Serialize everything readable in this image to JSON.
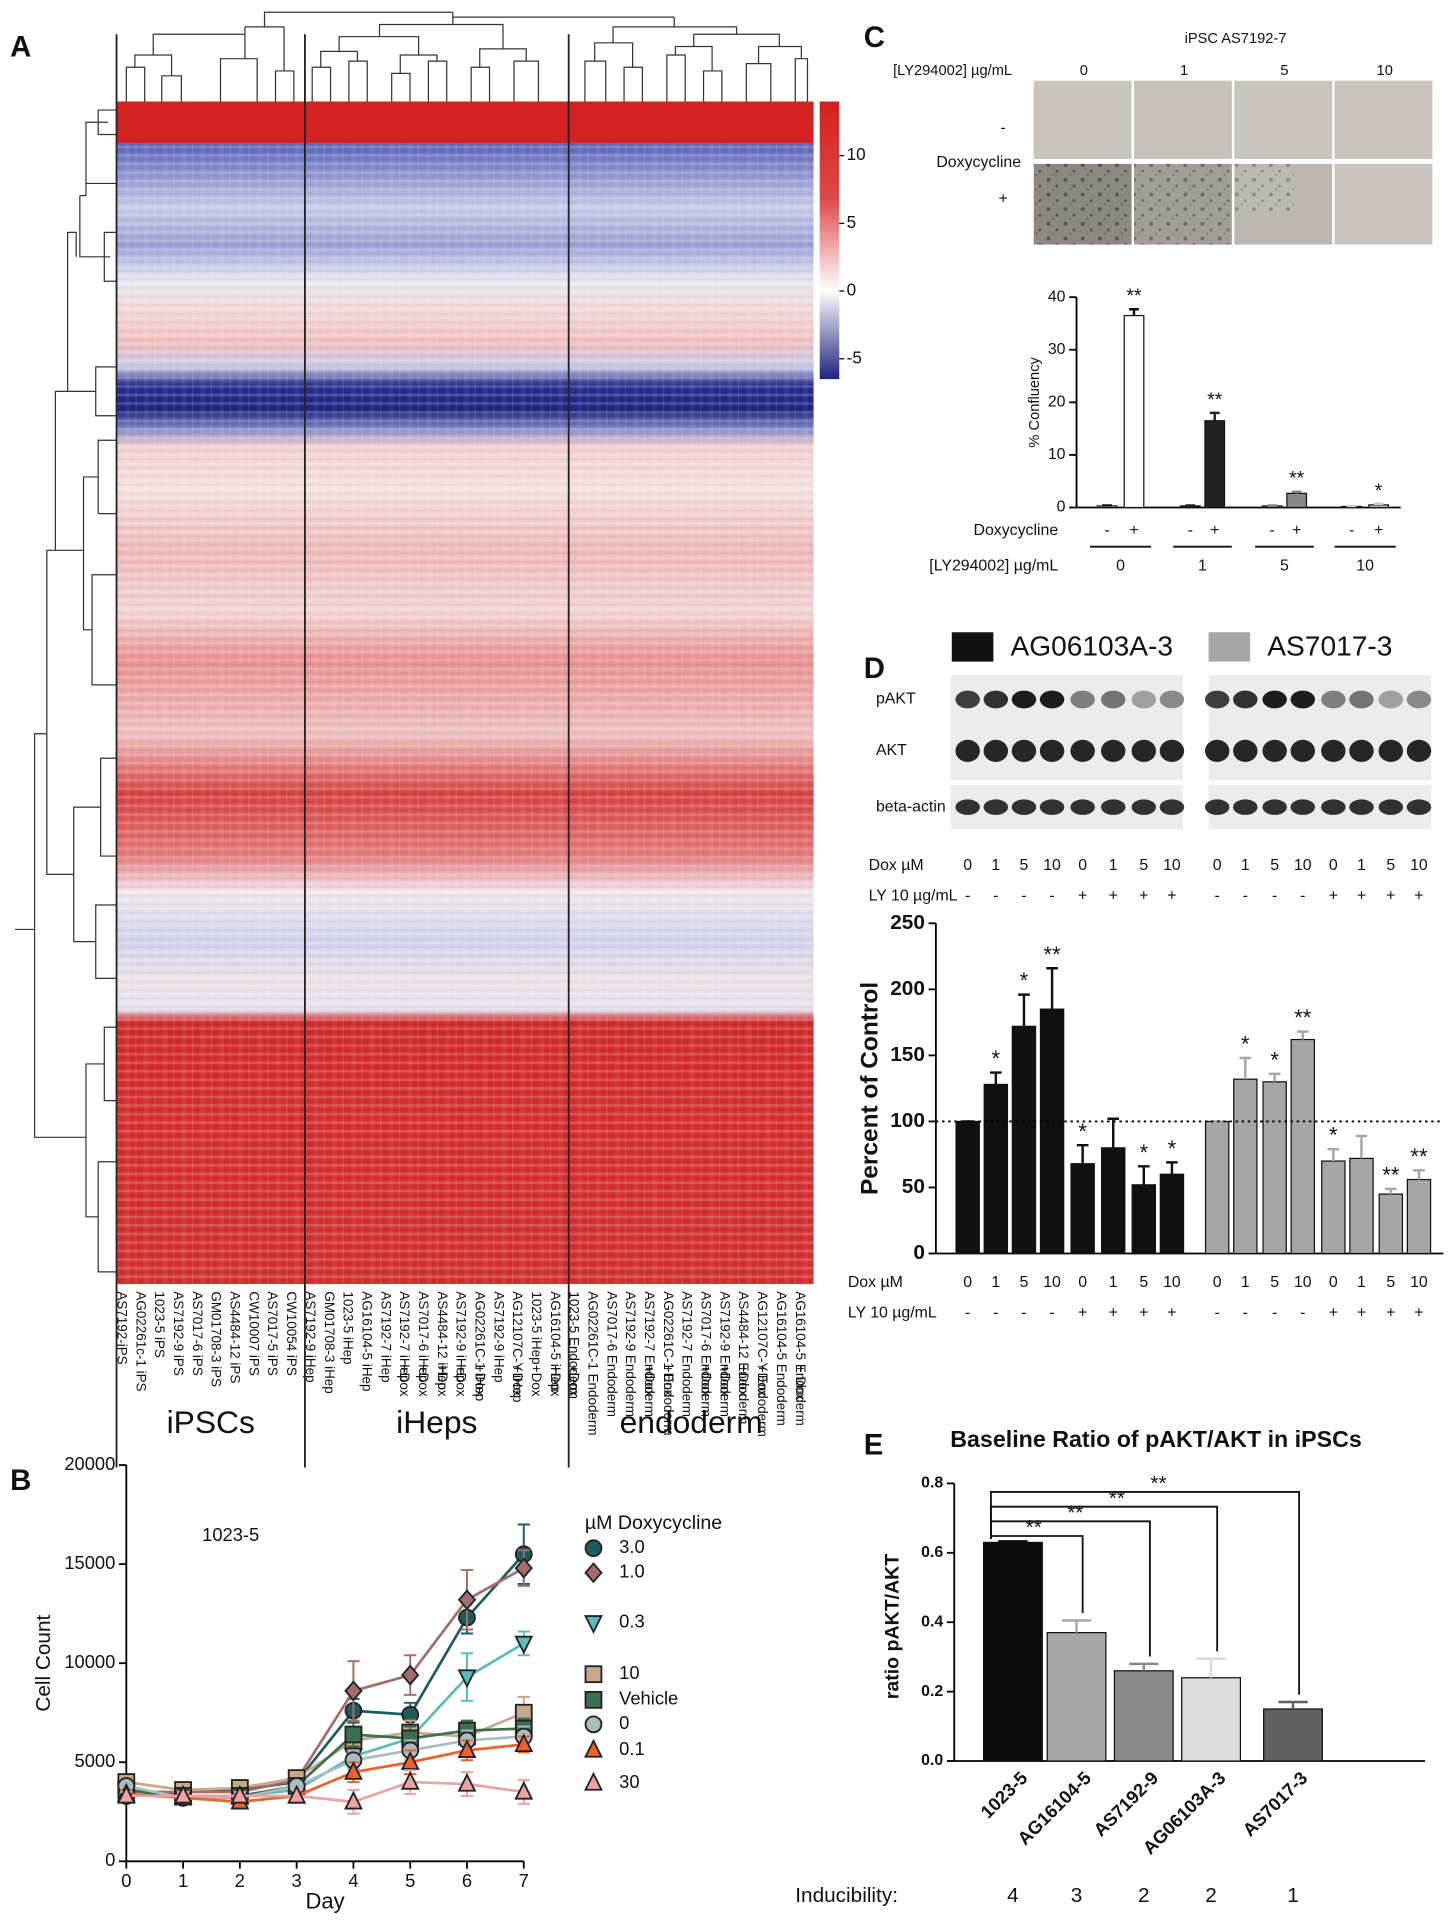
{
  "chart_data": [
    {
      "type": "heatmap",
      "label": "A",
      "columns": [
        {
          "label": "AS7192-iPS"
        },
        {
          "label": "AG02261c-1 iPS"
        },
        {
          "label": "1023-5 iPS"
        },
        {
          "label": "AS7192-9 iPS"
        },
        {
          "label": "AS7017-6 iPS"
        },
        {
          "label": "GM01708-3 iPS"
        },
        {
          "label": "AS4484-12 iPS"
        },
        {
          "label": "CW10007 iPS"
        },
        {
          "label": "AS7017-5 iPS"
        },
        {
          "label": "CW10054 iPS"
        },
        {
          "label": "AS7192-9 iHep"
        },
        {
          "label": "GM01708-3 iHep"
        },
        {
          "label": "1023-5 iHep"
        },
        {
          "label": "AG16104-5 iHep"
        },
        {
          "label": "AS7192-7 iHep"
        },
        {
          "label": "AS7192-7 iHep",
          "dox": "+Dox"
        },
        {
          "label": "AS7017-6 iHep",
          "dox": "+Dox"
        },
        {
          "label": "AS4484-12 iHep",
          "dox": "+Dox"
        },
        {
          "label": "AS7192-9 iHep",
          "dox": "+Dox"
        },
        {
          "label": "AG02261C-1 iHep",
          "dox": "+Dox"
        },
        {
          "label": "AS7192-9 iHep"
        },
        {
          "label": "AG12107C-Y iHep",
          "dox": "+Dox"
        },
        {
          "label": "1023-5 iHep",
          "dox": "+Dox"
        },
        {
          "label": "AG16104-5 iHep",
          "dox": "+Dox"
        },
        {
          "label": "1023-5 Endoderm",
          "dox": "+Dox"
        },
        {
          "label": "AG02261C-1 Endoderm"
        },
        {
          "label": "AS7017-6 Endoderm"
        },
        {
          "label": "AS7192-9 Endoderm"
        },
        {
          "label": "AS7192-7 Endoderm",
          "dox": "+Dox"
        },
        {
          "label": "AG02261C-1 Endoderm",
          "dox": "+Dox"
        },
        {
          "label": "AS7192-7 Endoderm"
        },
        {
          "label": "AS7017-6 Endoderm",
          "dox": "+Dox"
        },
        {
          "label": "AS7192-9 Endoderm",
          "dox": "+Dox"
        },
        {
          "label": "AS4484-12 Endoderm",
          "dox": "+Dox"
        },
        {
          "label": "AG12107C-Y Endoderm",
          "dox": "+Dox"
        },
        {
          "label": "AG16104-5 Endoderm"
        },
        {
          "label": "AG16104-5 Endoderm",
          "dox": "+ Dox"
        }
      ],
      "groups": [
        {
          "name": "iPSCs",
          "columns": 10
        },
        {
          "name": "iHeps",
          "columns": 14
        },
        {
          "name": "endoderm",
          "columns": 13
        }
      ],
      "clim": [
        -6.5,
        14
      ],
      "cticks": [
        10,
        5,
        0,
        -5
      ]
    },
    {
      "type": "line",
      "label": "B",
      "annotation": "1023-5",
      "legend_title": "µM Doxycycline",
      "xlabel": "Day",
      "ylabel": "Cell Count",
      "x": [
        0,
        1,
        2,
        3,
        4,
        5,
        6,
        7
      ],
      "xlim": [
        0,
        7
      ],
      "xticks": [
        0,
        1,
        2,
        3,
        4,
        5,
        6,
        7
      ],
      "ylim": [
        0,
        20000
      ],
      "yticks": [
        0,
        5000,
        10000,
        15000,
        20000
      ],
      "series": [
        {
          "name": "3.0",
          "color": "#1f5b5b",
          "marker": "circle",
          "values": [
            3300,
            3500,
            3600,
            4000,
            7600,
            7400,
            12300,
            15500
          ],
          "errors": [
            300,
            200,
            200,
            300,
            600,
            600,
            800,
            1500
          ]
        },
        {
          "name": "1.0",
          "color": "#a36c6c",
          "marker": "diamond",
          "values": [
            3500,
            3500,
            3500,
            4100,
            8600,
            9400,
            13200,
            14800
          ],
          "errors": [
            300,
            200,
            200,
            300,
            1500,
            1000,
            1500,
            900
          ]
        },
        {
          "name": "0.3",
          "color": "#5bbcbc",
          "marker": "triangle-down",
          "values": [
            3600,
            3300,
            3300,
            3600,
            5300,
            6200,
            9300,
            11000
          ],
          "errors": [
            200,
            200,
            200,
            300,
            600,
            600,
            1200,
            600
          ]
        },
        {
          "name": "10",
          "color": "#c8a88a",
          "marker": "square",
          "values": [
            4000,
            3600,
            3700,
            4200,
            6100,
            6500,
            6300,
            7500
          ],
          "errors": [
            300,
            200,
            200,
            300,
            600,
            600,
            500,
            800
          ]
        },
        {
          "name": "Vehicle",
          "color": "#3d6e50",
          "marker": "square",
          "values": [
            3600,
            3300,
            3300,
            3800,
            6400,
            6200,
            6600,
            6700
          ],
          "errors": [
            300,
            200,
            200,
            300,
            600,
            600,
            500,
            500
          ]
        },
        {
          "name": "0",
          "color": "#a9bcc0",
          "marker": "circle",
          "values": [
            3800,
            3200,
            3200,
            3800,
            5100,
            5600,
            6100,
            6300
          ],
          "errors": [
            300,
            200,
            200,
            300,
            500,
            500,
            500,
            500
          ]
        },
        {
          "name": "0.1",
          "color": "#f0602e",
          "marker": "triangle",
          "values": [
            3400,
            3200,
            3000,
            3300,
            4500,
            5000,
            5600,
            5900
          ],
          "errors": [
            200,
            200,
            300,
            300,
            500,
            600,
            500,
            400
          ]
        },
        {
          "name": "30",
          "color": "#eba2a2",
          "marker": "triangle",
          "values": [
            3300,
            3300,
            3300,
            3300,
            3000,
            4000,
            3900,
            3500
          ],
          "errors": [
            200,
            200,
            200,
            300,
            600,
            600,
            600,
            600
          ]
        }
      ]
    },
    {
      "type": "bar",
      "label": "C",
      "images": {
        "title": "iPSC AS7192-7",
        "column_label": "[LY294002] µg/mL",
        "columns": [
          "0",
          "1",
          "5",
          "10"
        ],
        "row_label": "Doxycycline",
        "rows": [
          "-",
          "+"
        ]
      },
      "ylabel": "% Confluency",
      "ylim": [
        0,
        40
      ],
      "yticks": [
        0,
        10,
        20,
        30,
        40
      ],
      "dox_label": "Doxycycline",
      "dox": [
        "-",
        "+",
        "-",
        "+",
        "-",
        "+",
        "-",
        "+"
      ],
      "group_label": "[LY294002] µg/mL",
      "groups": [
        "0",
        "1",
        "5",
        "10"
      ],
      "values": [
        0.3,
        36.5,
        0.3,
        16.5,
        0.3,
        2.7,
        0.2,
        0.5
      ],
      "errors": [
        0.1,
        1.2,
        0.1,
        1.5,
        0.1,
        0.3,
        0.1,
        0.2
      ],
      "colors": [
        "#ffffff",
        "#ffffff",
        "#222222",
        "#222222",
        "#888888",
        "#888888",
        "#cccccc",
        "#cccccc"
      ],
      "annotations": [
        null,
        "**",
        null,
        "**",
        null,
        "**",
        null,
        "*"
      ]
    },
    {
      "type": "bar",
      "label": "D",
      "blot_rows": [
        "pAKT",
        "AKT",
        "beta-actin"
      ],
      "dox_label": "Dox µM",
      "dox": [
        "0",
        "1",
        "5",
        "10",
        "0",
        "1",
        "5",
        "10"
      ],
      "ly_label": "LY 10 µg/mL",
      "ly": [
        "-",
        "-",
        "-",
        "-",
        "+",
        "+",
        "+",
        "+"
      ],
      "ylabel": "Percent of Control",
      "ylim": [
        0,
        250
      ],
      "yticks": [
        0,
        50,
        100,
        150,
        200,
        250
      ],
      "reference_line": 100,
      "series": [
        {
          "name": "AG06103A-3",
          "color": "#111111",
          "values": [
            100,
            128,
            172,
            185,
            68,
            80,
            52,
            60
          ],
          "errors": [
            0,
            9,
            24,
            31,
            14,
            22,
            14,
            9
          ],
          "annotations": [
            null,
            "*",
            "*",
            "**",
            "*",
            null,
            "*",
            "*"
          ]
        },
        {
          "name": "AS7017-3",
          "color": "#a6a6a6",
          "values": [
            100,
            132,
            130,
            162,
            70,
            72,
            45,
            56
          ],
          "errors": [
            0,
            16,
            6,
            6,
            9,
            17,
            4,
            7
          ],
          "annotations": [
            null,
            "*",
            "*",
            "**",
            "*",
            null,
            "**",
            "**"
          ]
        }
      ]
    },
    {
      "type": "bar",
      "label": "E",
      "title": "Baseline Ratio of pAKT/AKT in iPSCs",
      "ylabel": "ratio pAKT/AKT",
      "categories": [
        "1023-5",
        "AG16104-5",
        "AS7192-9",
        "AG06103A-3",
        "AS7017-3"
      ],
      "values": [
        0.63,
        0.37,
        0.26,
        0.24,
        0.15
      ],
      "errors": [
        0.003,
        0.035,
        0.02,
        0.055,
        0.02
      ],
      "colors": [
        "#0a0a0a",
        "#a8a8a8",
        "#8a8a8a",
        "#dcdcdc",
        "#606060"
      ],
      "ylim": [
        0,
        0.8
      ],
      "yticks": [
        {
          "value": 0,
          "label": "0.0"
        },
        0.2,
        0.4,
        0.6,
        0.8
      ],
      "comparisons": [
        {
          "categories": [
            "1023-5",
            "AS7017-3"
          ],
          "label": "**"
        },
        {
          "categories": [
            "1023-5",
            "AG06103A-3"
          ],
          "label": "**"
        },
        {
          "categories": [
            "1023-5",
            "AS7192-9"
          ],
          "label": "**"
        },
        {
          "categories": [
            "1023-5",
            "AG16104-5"
          ],
          "label": "**"
        }
      ],
      "inducibility_label": "Inducibility:",
      "inducibility": [
        4,
        3,
        2,
        2,
        1
      ]
    }
  ]
}
